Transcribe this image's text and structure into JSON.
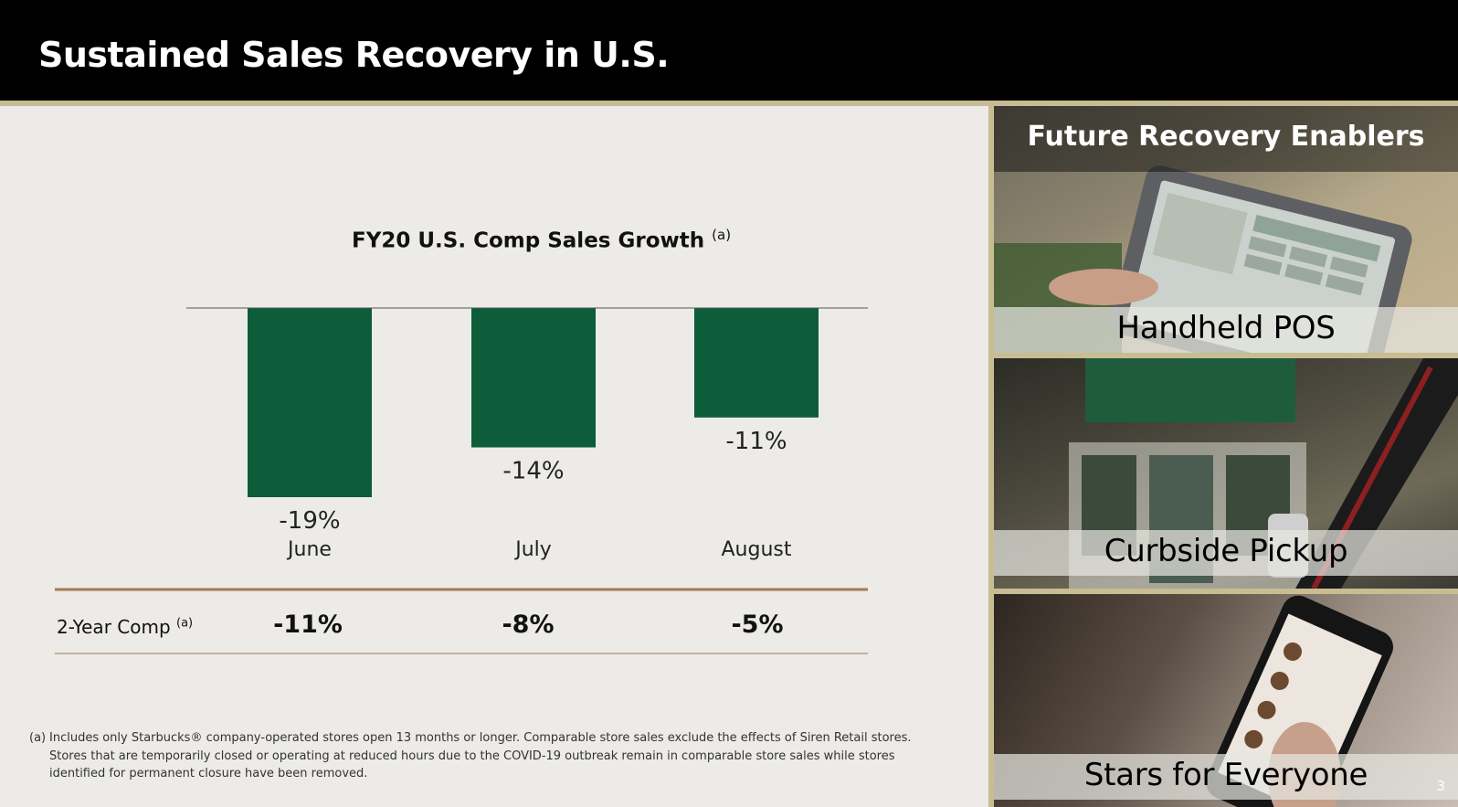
{
  "header": {
    "title": "Sustained Sales Recovery in U.S."
  },
  "chart_data": {
    "type": "bar",
    "title": "FY20 U.S. Comp Sales Growth",
    "title_superscript": "(a)",
    "categories": [
      "June",
      "July",
      "August"
    ],
    "values": [
      -19,
      -14,
      -11
    ],
    "value_labels": [
      "-19%",
      "-14%",
      "-11%"
    ],
    "ylim": [
      -25,
      0
    ],
    "bar_color": "#0d5c3a",
    "xlabel": "",
    "ylabel": "",
    "grid": false
  },
  "two_year_comp": {
    "label": "2-Year Comp",
    "superscript": "(a)",
    "values": [
      "-11%",
      "-8%",
      "-5%"
    ]
  },
  "footnote": {
    "marker": "(a)",
    "text": "Includes only Starbucks® company-operated stores open 13 months or longer. Comparable store sales exclude the effects of Siren Retail stores. Stores that are temporarily closed or operating at reduced hours due to the COVID-19 outbreak remain in comparable store sales while stores identified for permanent closure have been removed."
  },
  "enablers": {
    "heading": "Future Recovery Enablers",
    "items": [
      {
        "label": "Handheld POS"
      },
      {
        "label": "Curbside Pickup"
      },
      {
        "label": "Stars for Everyone"
      }
    ]
  },
  "page": {
    "number": "3"
  },
  "colors": {
    "accent_gold": "#c8bd92",
    "header_bg": "#000000",
    "bar_green": "#0d5c3a",
    "rule_brown": "#a07a55"
  }
}
